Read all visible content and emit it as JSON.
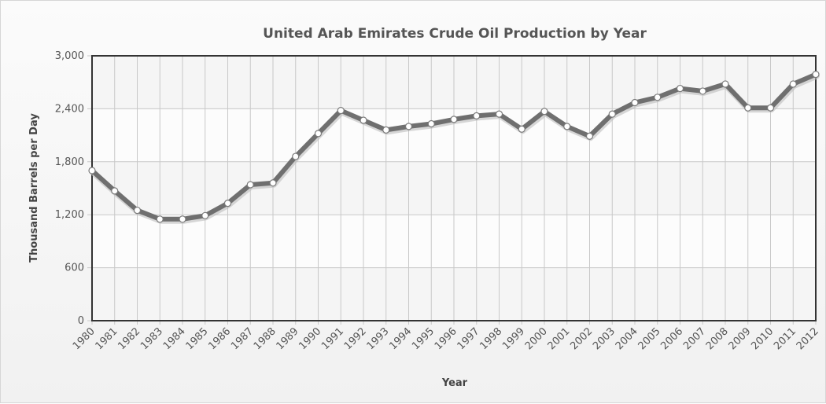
{
  "chart_data": {
    "type": "line",
    "title": "United Arab Emirates Crude Oil Production by Year",
    "xlabel": "Year",
    "ylabel": "Thousand Barrels per Day",
    "ylim": [
      0,
      3000
    ],
    "yticks": [
      "0",
      "600",
      "1,200",
      "1,800",
      "2,400",
      "3,000"
    ],
    "ytick_values": [
      0,
      600,
      1200,
      1800,
      2400,
      3000
    ],
    "grid": true,
    "categories": [
      "1980",
      "1981",
      "1982",
      "1983",
      "1984",
      "1985",
      "1986",
      "1987",
      "1988",
      "1989",
      "1990",
      "1991",
      "1992",
      "1993",
      "1994",
      "1995",
      "1996",
      "1997",
      "1998",
      "1999",
      "2000",
      "2001",
      "2002",
      "2003",
      "2004",
      "2005",
      "2006",
      "2007",
      "2008",
      "2009",
      "2010",
      "2011",
      "2012"
    ],
    "series": [
      {
        "values": [
          1700,
          1470,
          1250,
          1150,
          1150,
          1190,
          1330,
          1540,
          1560,
          1860,
          2120,
          2380,
          2270,
          2160,
          2200,
          2230,
          2280,
          2320,
          2340,
          2170,
          2370,
          2200,
          2090,
          2340,
          2470,
          2530,
          2630,
          2600,
          2680,
          2410,
          2410,
          2680,
          2790
        ]
      }
    ],
    "colors": {
      "line": "#6f6f6f",
      "marker_fill": "#ffffff",
      "grid": "#c8c8c8",
      "axis": "#333333"
    }
  }
}
